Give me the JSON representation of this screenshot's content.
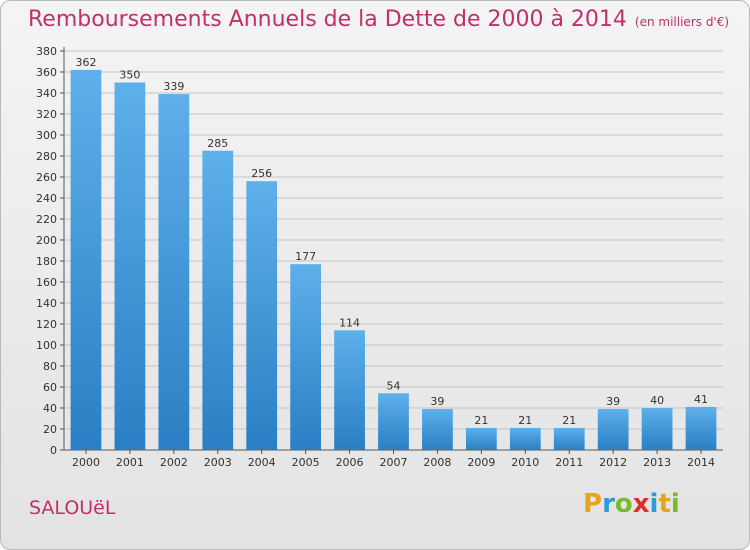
{
  "chart_data": {
    "type": "bar",
    "title": "Remboursements Annuels de la Dette de 2000 à 2014",
    "subtitle": "(en milliers d'€)",
    "categories": [
      "2000",
      "2001",
      "2002",
      "2003",
      "2004",
      "2005",
      "2006",
      "2007",
      "2008",
      "2009",
      "2010",
      "2011",
      "2012",
      "2013",
      "2014"
    ],
    "values": [
      362,
      350,
      339,
      285,
      256,
      177,
      114,
      54,
      39,
      21,
      21,
      21,
      39,
      40,
      41
    ],
    "ylim": [
      0,
      380
    ],
    "yticks": [
      0,
      20,
      40,
      60,
      80,
      100,
      120,
      140,
      160,
      180,
      200,
      220,
      240,
      260,
      280,
      300,
      320,
      340,
      360,
      380
    ],
    "grid": true,
    "bar_color": "#4a9fdf"
  },
  "commune": "SALOUëL",
  "logo": {
    "text": "Proxiti"
  }
}
